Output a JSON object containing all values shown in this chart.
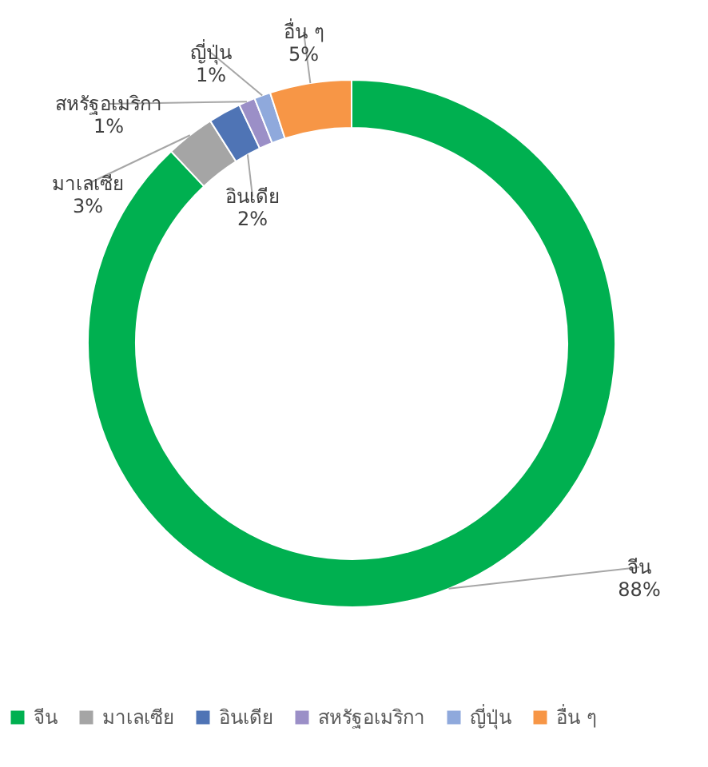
{
  "chart_data": {
    "type": "donut",
    "categories": [
      "จีน",
      "มาเลเซีย",
      "อินเดีย",
      "สหรัฐอเมริกา",
      "ญี่ปุ่น",
      "อื่น ๆ"
    ],
    "values": [
      88,
      3,
      2,
      1,
      1,
      5
    ],
    "value_labels": [
      "88%",
      "3%",
      "2%",
      "1%",
      "1%",
      "5%"
    ],
    "colors": [
      "#00b050",
      "#a5a5a5",
      "#4f74b5",
      "#9b8fc7",
      "#8fa9dc",
      "#f79646"
    ],
    "legend": "bottom"
  }
}
